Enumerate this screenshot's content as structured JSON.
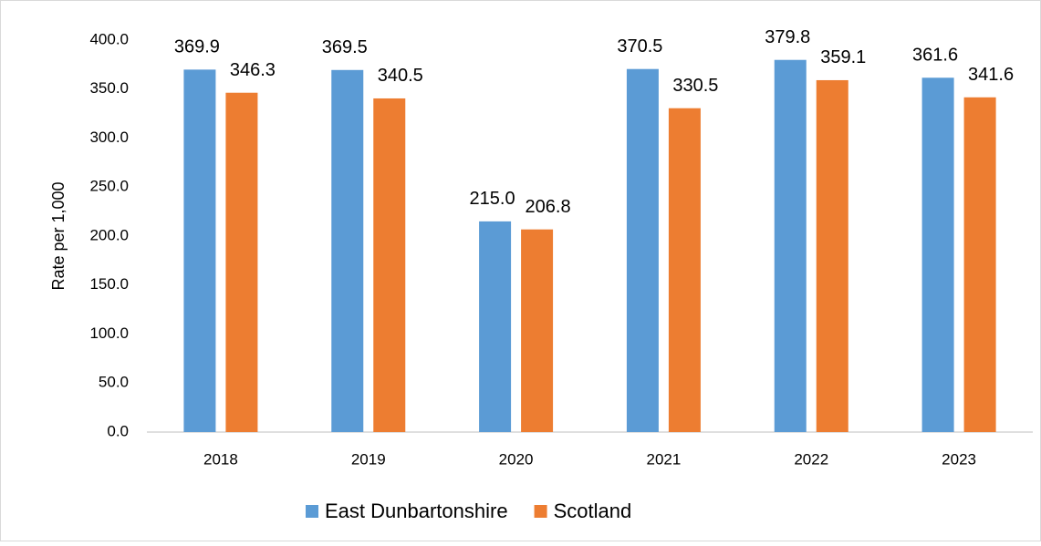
{
  "chart_data": {
    "type": "bar",
    "y_label": "Rate per 1,000",
    "categories": [
      "2018",
      "2019",
      "2020",
      "2021",
      "2022",
      "2023"
    ],
    "series": [
      {
        "name": "East Dunbartonshire",
        "color": "#5b9bd5",
        "values": [
          369.9,
          369.5,
          215.0,
          370.5,
          379.8,
          361.6
        ],
        "value_labels": [
          "369.9",
          "369.5",
          "215.0",
          "370.5",
          "379.8",
          "361.6"
        ]
      },
      {
        "name": "Scotland",
        "color": "#ed7d31",
        "values": [
          346.3,
          340.5,
          206.8,
          330.5,
          359.1,
          341.6
        ],
        "value_labels": [
          "346.3",
          "340.5",
          "206.8",
          "330.5",
          "359.1",
          "341.6"
        ]
      }
    ],
    "ylim": [
      0,
      400
    ],
    "yticks": [
      {
        "value": 0,
        "label": "0.0"
      },
      {
        "value": 50,
        "label": "50.0"
      },
      {
        "value": 100,
        "label": "100.0"
      },
      {
        "value": 150,
        "label": "150.0"
      },
      {
        "value": 200,
        "label": "200.0"
      },
      {
        "value": 250,
        "label": "250.0"
      },
      {
        "value": 300,
        "label": "300.0"
      },
      {
        "value": 350,
        "label": "350.0"
      },
      {
        "value": 400,
        "label": "400.0"
      }
    ],
    "grid": false,
    "legend": "bottom"
  }
}
